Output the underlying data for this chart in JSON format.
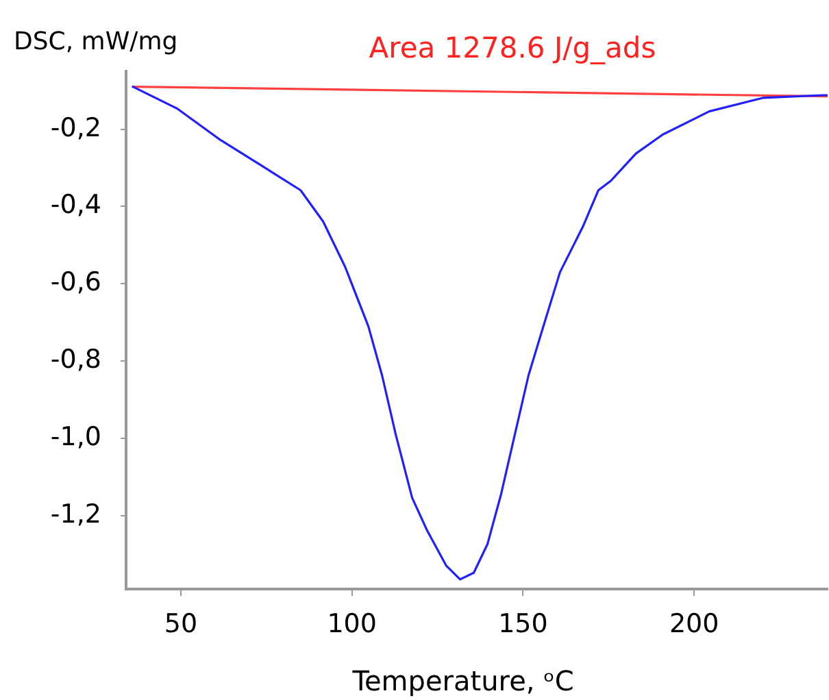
{
  "chart_data": {
    "type": "line",
    "ylabel": "DSC, mW/mg",
    "xlabel": "Temperature, ᵒC",
    "annotations": [
      "Area 1278.6 J/g_ads"
    ],
    "xlim": [
      34,
      239
    ],
    "xticks": [
      50,
      100,
      150,
      200
    ],
    "ylim": [
      -1.39,
      -0.05
    ],
    "yticks": [
      {
        "value": -0.2,
        "label": "-0,2"
      },
      {
        "value": -0.4,
        "label": "-0,4"
      },
      {
        "value": -0.6,
        "label": "-0,6"
      },
      {
        "value": -0.8,
        "label": "-0,8"
      },
      {
        "value": -1.0,
        "label": "-1,0"
      },
      {
        "value": -1.2,
        "label": "-1,2"
      }
    ],
    "grid": false,
    "series": [
      {
        "color": "#2020ff",
        "x": [
          36,
          49,
          61.6,
          73.7,
          85,
          91.6,
          98,
          104.8,
          108.8,
          112.8,
          117.6,
          122,
          127.6,
          131.6,
          135.6,
          139.6,
          143.6,
          147.6,
          151.6,
          155.6,
          160.8,
          167.6,
          172,
          175.6,
          183,
          190.8,
          204.4,
          220,
          237.6,
          239
        ],
        "values": [
          -0.09,
          -0.147,
          -0.228,
          -0.295,
          -0.358,
          -0.439,
          -0.556,
          -0.71,
          -0.837,
          -0.99,
          -1.154,
          -1.239,
          -1.33,
          -1.365,
          -1.348,
          -1.274,
          -1.144,
          -0.99,
          -0.837,
          -0.72,
          -0.57,
          -0.45,
          -0.358,
          -0.334,
          -0.263,
          -0.214,
          -0.154,
          -0.119,
          -0.112,
          -0.112
        ]
      },
      {
        "color": "#ff4040",
        "x": [
          36,
          239
        ],
        "values": [
          -0.09,
          -0.115
        ]
      }
    ]
  }
}
